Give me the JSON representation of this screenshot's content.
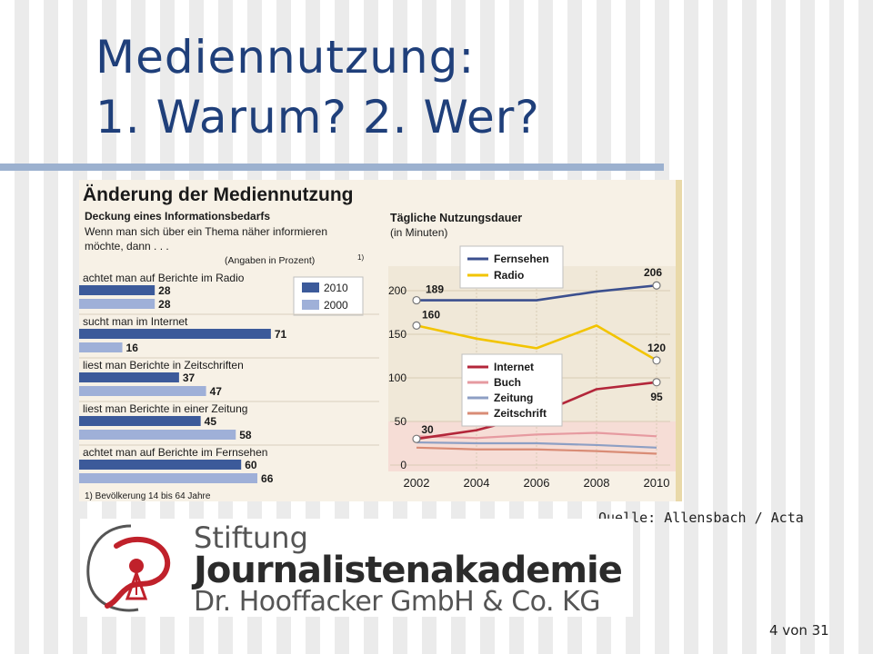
{
  "slide": {
    "title_line1": "Mediennutzung:",
    "title_line2": "1. Warum? 2. Wer?",
    "source": "Quelle: Allensbach / Acta",
    "page": "4 von 31",
    "accent": "#1f3f7a",
    "rule_color": "#9cb1cf"
  },
  "logo": {
    "line1": "Stiftung",
    "line2": "Journalistenakademie",
    "line3": "Dr. Hooffacker GmbH & Co. KG",
    "emblem": "pen-nib-emblem",
    "emblem_color": "#c0212b"
  },
  "chart_data": [
    {
      "type": "bar",
      "title": "Änderung der Mediennutzung",
      "subtitle": "Deckung eines Informationsbedarfs",
      "question": [
        "Wenn man sich über ein Thema näher informieren",
        "möchte, dann . . ."
      ],
      "unit_note": "(Angaben in Prozent)",
      "unit_marker": "1)",
      "footnote": "1) Bevölkerung 14 bis 64 Jahre",
      "orientation": "horizontal",
      "categories": [
        "achtet man auf Berichte im Radio",
        "sucht man im Internet",
        "liest man Berichte in Zeitschriften",
        "liest man Berichte in einer Zeitung",
        "achtet man auf Berichte im Fernsehen"
      ],
      "series": [
        {
          "name": "2010",
          "values": [
            28,
            71,
            37,
            45,
            60
          ],
          "color": "#3c5a9a"
        },
        {
          "name": "2000",
          "values": [
            28,
            16,
            47,
            58,
            66
          ],
          "color": "#9fb0d8"
        }
      ],
      "xlim": [
        0,
        100
      ],
      "legend": "top-right"
    },
    {
      "type": "line",
      "title": "Tägliche Nutzungsdauer",
      "unit_note": "(in Minuten)",
      "x": [
        2002,
        2004,
        2006,
        2008,
        2010
      ],
      "xticks": [
        "2002",
        "2004",
        "2006",
        "2008",
        "2010"
      ],
      "yticks": [
        "0",
        "50",
        "100",
        "150",
        "200"
      ],
      "ylim": [
        0,
        230
      ],
      "grid": true,
      "series": [
        {
          "name": "Fernsehen",
          "values": [
            189,
            189,
            189,
            199,
            206
          ],
          "color": "#3b4f8e"
        },
        {
          "name": "Radio",
          "values": [
            160,
            145,
            134,
            160,
            120
          ],
          "color": "#f2c400"
        },
        {
          "name": "Internet",
          "values": [
            30,
            40,
            58,
            87,
            95
          ],
          "color": "#b3263a"
        },
        {
          "name": "Buch",
          "values": [
            33,
            31,
            35,
            37,
            33
          ],
          "color": "#e69aa0"
        },
        {
          "name": "Zeitung",
          "values": [
            26,
            25,
            25,
            23,
            20
          ],
          "color": "#8d9fc4"
        },
        {
          "name": "Zeitschrift",
          "values": [
            20,
            18,
            18,
            16,
            13
          ],
          "color": "#d98c76"
        }
      ],
      "value_labels": [
        {
          "series": "Fernsehen",
          "text": "189"
        },
        {
          "series": "Fernsehen",
          "text": "206"
        },
        {
          "series": "Radio",
          "text": "160"
        },
        {
          "series": "Radio",
          "text": "120"
        },
        {
          "series": "Internet",
          "text": "30"
        },
        {
          "series": "Internet",
          "text": "95"
        }
      ],
      "legend": "inside-left"
    }
  ]
}
